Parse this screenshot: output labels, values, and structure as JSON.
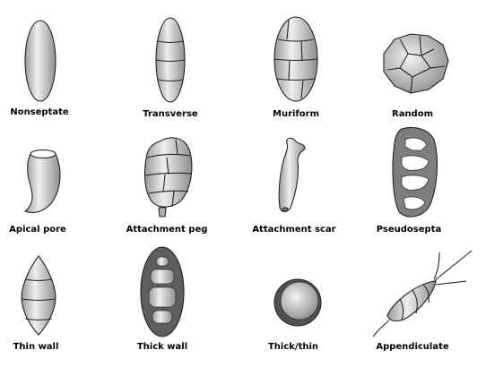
{
  "labels": {
    "nonseptate": "Nonseptate",
    "transverse": "Transverse",
    "muriform": "Muriform",
    "random": "Random",
    "apical_pore": "Apical pore",
    "attachment_peg": "Attachment peg",
    "attachment_scar": "Attachment scar",
    "pseudosepta": "Pseudosepta",
    "thin_wall": "Thin wall",
    "thick_wall": "Thick wall",
    "thick_thin": "Thick/thin",
    "appendiculate": "Appendiculate"
  }
}
